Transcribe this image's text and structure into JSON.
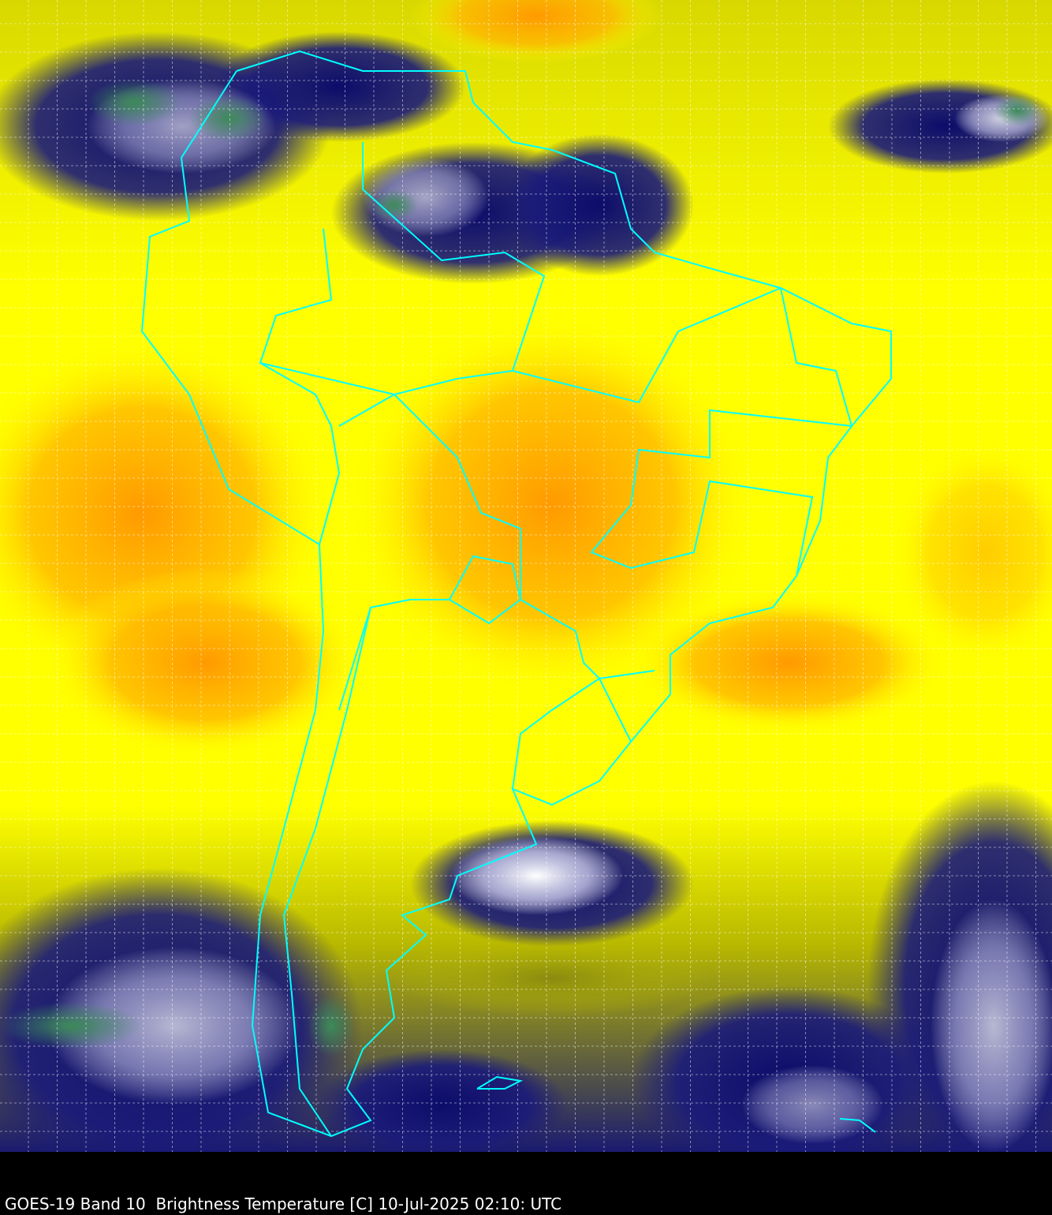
{
  "caption": "GOES-19 Band 10  Brightness Temperature [C] 10-Jul-2025 02:10: UTC",
  "colors": {
    "warm": "#ffa500",
    "mid": "#ffff00",
    "cool": "#b9b800",
    "cold": "#10106e",
    "coldest": "#ffffff",
    "deep": "#3d8a3d",
    "borders": "#00ffff",
    "grid": "#ffffff",
    "background": "#000000"
  }
}
